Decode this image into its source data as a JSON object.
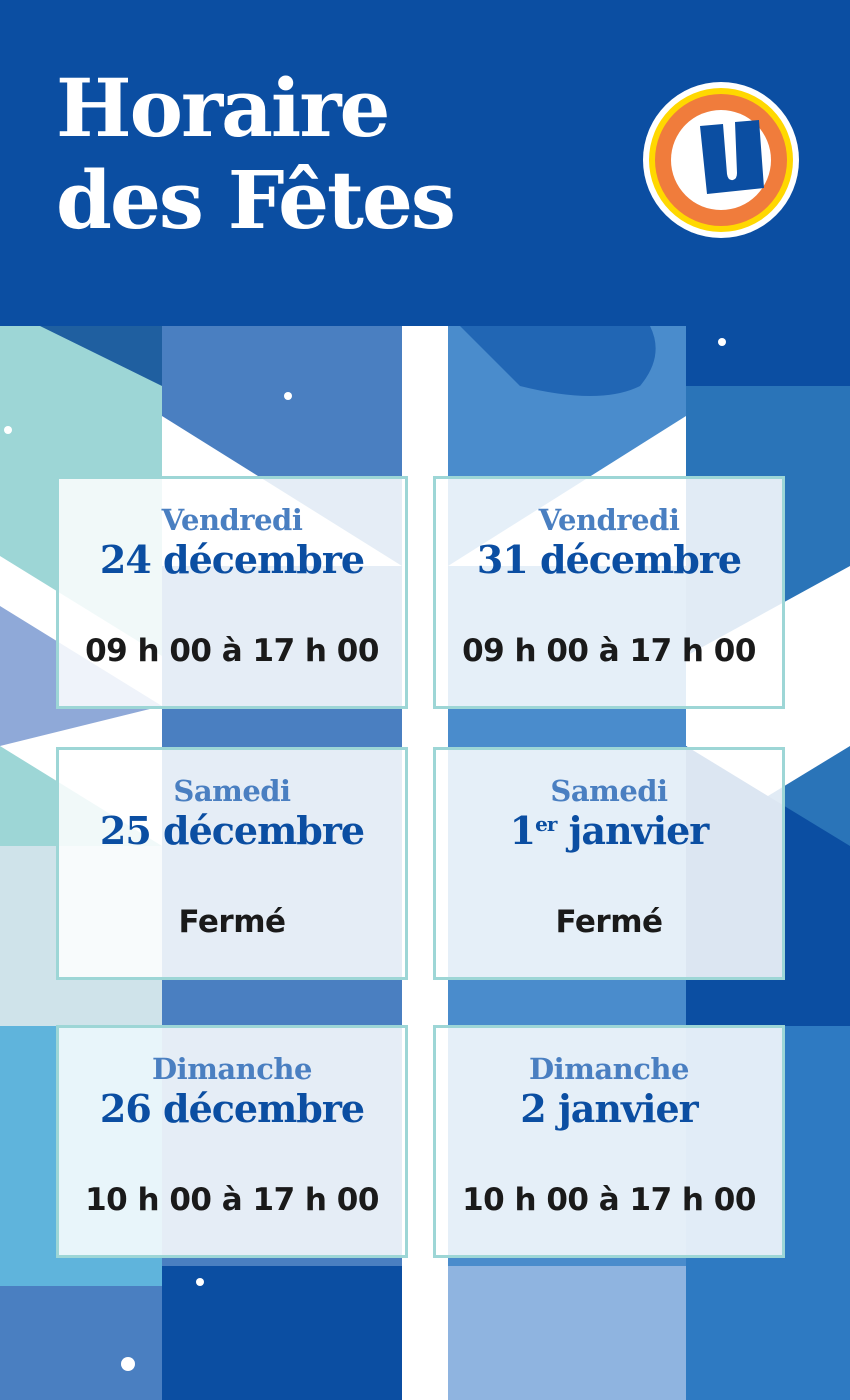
{
  "header": {
    "title_line1": "Horaire",
    "title_line2": "des Fêtes",
    "logo_letter": "U"
  },
  "colors": {
    "brand_blue": "#0b4ea2",
    "day_blue": "#4a7fc1",
    "card_border": "#9dd6d6",
    "logo_orange": "#f07c3c",
    "logo_yellow": "#ffd800"
  },
  "schedule": [
    {
      "day": "Vendredi",
      "date": "24 décembre",
      "hours": "09 h 00 à 17 h 00"
    },
    {
      "day": "Vendredi",
      "date": "31 décembre",
      "hours": "09 h 00 à 17 h 00"
    },
    {
      "day": "Samedi",
      "date": "25 décembre",
      "hours": "Fermé"
    },
    {
      "day": "Samedi",
      "date_num": "1",
      "date_sup": "er",
      "date_rest": " janvier",
      "hours": "Fermé"
    },
    {
      "day": "Dimanche",
      "date": "26 décembre",
      "hours": "10 h 00 à 17 h 00"
    },
    {
      "day": "Dimanche",
      "date": "2 janvier",
      "hours": "10 h 00 à 17 h 00"
    }
  ]
}
